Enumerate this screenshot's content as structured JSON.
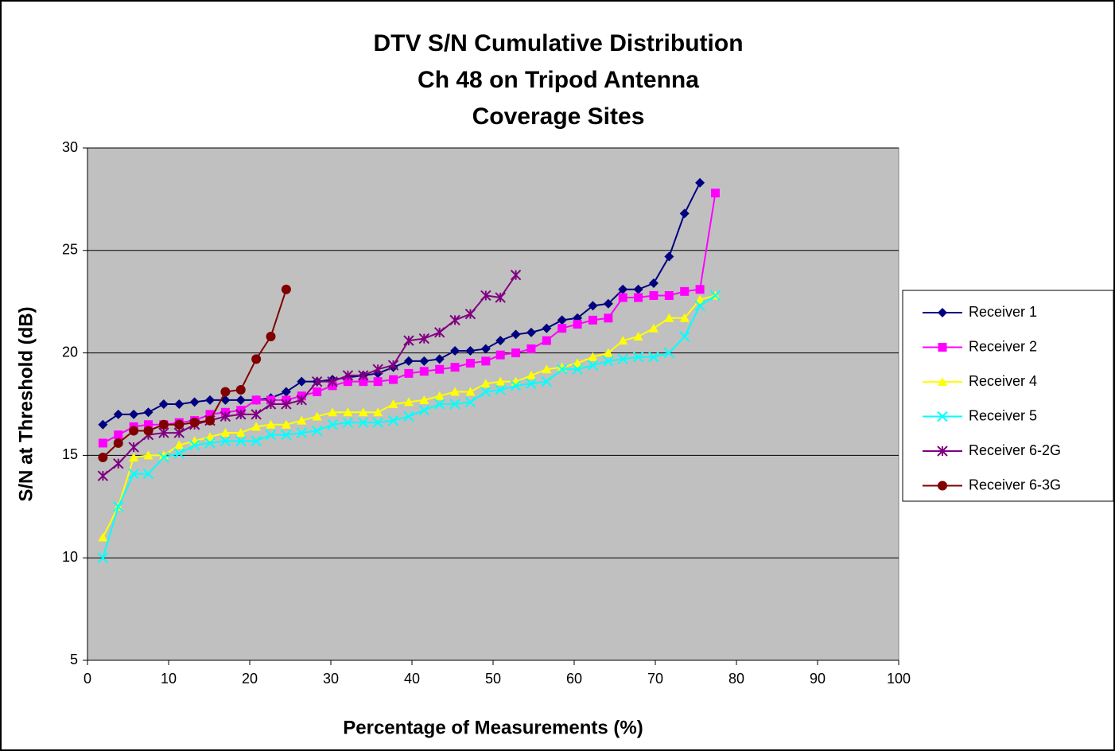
{
  "chart_data": {
    "type": "line",
    "title": [
      "DTV S/N Cumulative Distribution",
      "Ch 48 on Tripod Antenna",
      "Coverage Sites"
    ],
    "x_label": "Percentage of Measurements (%)",
    "y_label": "S/N at Threshold (dB)",
    "x": [
      1.9,
      3.8,
      5.7,
      7.5,
      9.4,
      11.3,
      13.2,
      15.1,
      17.0,
      18.9,
      20.8,
      22.6,
      24.5,
      26.4,
      28.3,
      30.2,
      32.1,
      34.0,
      35.8,
      37.7,
      39.6,
      41.5,
      43.4,
      45.3,
      47.2,
      49.1,
      50.9,
      52.8,
      54.7,
      56.6,
      58.5,
      60.4,
      62.3,
      64.2,
      66.0,
      67.9,
      69.8,
      71.7,
      73.6,
      75.5,
      77.4
    ],
    "series": [
      {
        "name": "Receiver 1",
        "color": "#000080",
        "marker": "diamond",
        "values": [
          16.5,
          17.0,
          17.0,
          17.1,
          17.5,
          17.5,
          17.6,
          17.7,
          17.7,
          17.7,
          17.7,
          17.8,
          18.1,
          18.6,
          18.6,
          18.7,
          18.8,
          18.9,
          19.0,
          19.3,
          19.6,
          19.6,
          19.7,
          20.1,
          20.1,
          20.2,
          20.6,
          20.9,
          21.0,
          21.2,
          21.6,
          21.7,
          22.3,
          22.4,
          23.1,
          23.1,
          23.4,
          24.7,
          26.8,
          28.3,
          null
        ]
      },
      {
        "name": "Receiver 2",
        "color": "#ff00ff",
        "marker": "square",
        "values": [
          15.6,
          16.0,
          16.4,
          16.5,
          16.5,
          16.6,
          16.7,
          17.0,
          17.1,
          17.2,
          17.7,
          17.7,
          17.7,
          17.9,
          18.1,
          18.4,
          18.6,
          18.6,
          18.6,
          18.7,
          19.0,
          19.1,
          19.2,
          19.3,
          19.5,
          19.6,
          19.9,
          20.0,
          20.2,
          20.6,
          21.2,
          21.4,
          21.6,
          21.7,
          22.7,
          22.7,
          22.8,
          22.8,
          23.0,
          23.1,
          27.8
        ]
      },
      {
        "name": "Receiver 4",
        "color": "#ffff00",
        "marker": "triangle",
        "values": [
          11.0,
          12.5,
          14.9,
          15.0,
          15.0,
          15.5,
          15.7,
          15.9,
          16.1,
          16.1,
          16.4,
          16.5,
          16.5,
          16.7,
          16.9,
          17.1,
          17.1,
          17.1,
          17.1,
          17.5,
          17.6,
          17.7,
          17.9,
          18.1,
          18.1,
          18.5,
          18.6,
          18.6,
          18.9,
          19.2,
          19.3,
          19.5,
          19.8,
          20.0,
          20.6,
          20.8,
          21.2,
          21.7,
          21.7,
          22.6,
          22.8
        ]
      },
      {
        "name": "Receiver 5",
        "color": "#00ffff",
        "marker": "x",
        "values": [
          10.0,
          12.5,
          14.1,
          14.1,
          14.9,
          15.1,
          15.5,
          15.6,
          15.7,
          15.7,
          15.7,
          16.0,
          16.0,
          16.1,
          16.2,
          16.5,
          16.6,
          16.6,
          16.6,
          16.7,
          16.9,
          17.2,
          17.5,
          17.5,
          17.6,
          18.1,
          18.2,
          18.4,
          18.5,
          18.6,
          19.2,
          19.2,
          19.4,
          19.6,
          19.7,
          19.8,
          19.8,
          20.0,
          20.8,
          22.3,
          22.8
        ]
      },
      {
        "name": "Receiver 6-2G",
        "color": "#800080",
        "marker": "star",
        "values": [
          14.0,
          14.6,
          15.4,
          16.0,
          16.1,
          16.1,
          16.5,
          16.7,
          16.9,
          17.0,
          17.0,
          17.5,
          17.5,
          17.7,
          18.6,
          18.6,
          18.9,
          18.9,
          19.2,
          19.4,
          20.6,
          20.7,
          21.0,
          21.6,
          21.9,
          22.8,
          22.7,
          23.8,
          null,
          null,
          null,
          null,
          null,
          null,
          null,
          null,
          null,
          null,
          null,
          null,
          null
        ]
      },
      {
        "name": "Receiver 6-3G",
        "color": "#800000",
        "marker": "circle",
        "values": [
          14.9,
          15.6,
          16.2,
          16.2,
          16.5,
          16.5,
          16.6,
          16.7,
          18.1,
          18.2,
          19.7,
          20.8,
          23.1,
          null,
          null,
          null,
          null,
          null,
          null,
          null,
          null,
          null,
          null,
          null,
          null,
          null,
          null,
          null,
          null,
          null,
          null,
          null,
          null,
          null,
          null,
          null,
          null,
          null,
          null,
          null,
          null
        ]
      }
    ],
    "xlim": [
      0,
      100
    ],
    "xticks": [
      0,
      10,
      20,
      30,
      40,
      50,
      60,
      70,
      80,
      90,
      100
    ],
    "ylim": [
      5,
      30
    ],
    "yticks": [
      5,
      10,
      15,
      20,
      25,
      30
    ],
    "grid": true,
    "legend": "right",
    "plot_background": "#c0c0c0"
  }
}
